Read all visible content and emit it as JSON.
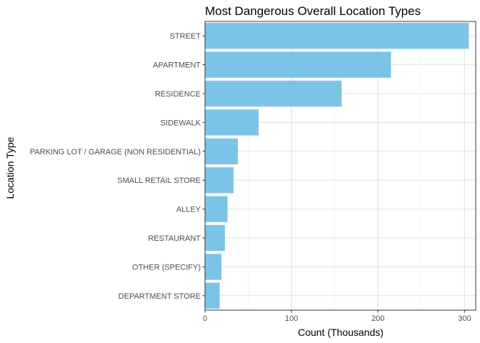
{
  "chart_data": {
    "type": "bar",
    "orientation": "horizontal",
    "title": "Most Dangerous Overall Location Types",
    "xlabel": "Count (Thousands)",
    "ylabel": "Location Type",
    "categories": [
      "STREET",
      "APARTMENT",
      "RESIDENCE",
      "SIDEWALK",
      "PARKING LOT / GARAGE (NON RESIDENTIAL)",
      "SMALL RETAIL STORE",
      "ALLEY",
      "RESTAURANT",
      "OTHER (SPECIFY)",
      "DEPARTMENT STORE"
    ],
    "values": [
      305,
      215,
      158,
      62,
      38,
      33,
      26,
      23,
      19,
      17
    ],
    "xlim": [
      0,
      313
    ],
    "xticks": [
      0,
      100,
      200,
      300
    ],
    "xtick_labels": [
      "0",
      "100",
      "200",
      "300"
    ],
    "bar_color": "#7BC4E8",
    "panel_border": true,
    "grid": true
  }
}
